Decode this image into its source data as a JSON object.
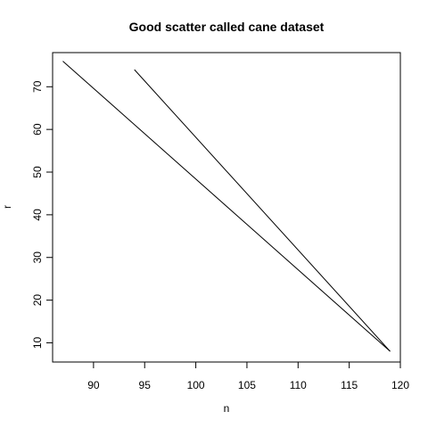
{
  "chart_data": {
    "type": "line",
    "title": "Good scatter called cane dataset",
    "xlabel": "n",
    "ylabel": "r",
    "xlim": [
      86,
      120
    ],
    "ylim": [
      5.5,
      78
    ],
    "x_ticks": [
      90,
      95,
      100,
      105,
      110,
      115,
      120
    ],
    "y_ticks": [
      10,
      20,
      30,
      40,
      50,
      60,
      70
    ],
    "grid": false,
    "series": [
      {
        "x": [
          87,
          119
        ],
        "y": [
          76,
          8
        ]
      },
      {
        "x": [
          94,
          119
        ],
        "y": [
          74,
          8
        ]
      }
    ]
  }
}
